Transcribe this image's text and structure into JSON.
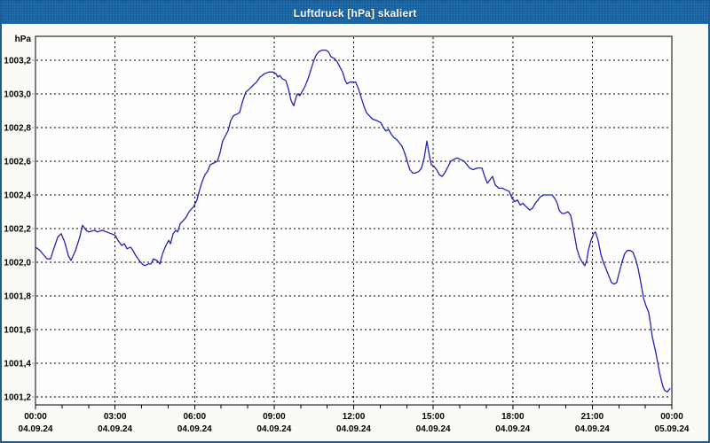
{
  "window": {
    "title": "Luftdruck [hPa] skaliert"
  },
  "colors": {
    "window_border": "#1d5c94",
    "titlebar_bg": "#1f6dad",
    "page_bg": "#fafaf6",
    "plot_bg": "#fefefe",
    "plot_border": "#000000",
    "grid": "#000000",
    "axis_text": "#000000",
    "y_tick": "#7aa2c8",
    "x_tick": "#000000",
    "line": "#2323b8"
  },
  "chart_data": {
    "type": "line",
    "title": "Luftdruck [hPa] skaliert",
    "xlabel": "",
    "ylabel": "hPa",
    "grid": "dashed",
    "legend": "none",
    "y_axis": {
      "unit_label": "hPa",
      "range": [
        1001.153,
        1003.342
      ],
      "ticks": [
        {
          "v": 1003.2,
          "label": "1003,2"
        },
        {
          "v": 1003.0,
          "label": "1003,0"
        },
        {
          "v": 1002.8,
          "label": "1002,8"
        },
        {
          "v": 1002.6,
          "label": "1002,6"
        },
        {
          "v": 1002.4,
          "label": "1002,4"
        },
        {
          "v": 1002.2,
          "label": "1002,2"
        },
        {
          "v": 1002.0,
          "label": "1002,0"
        },
        {
          "v": 1001.8,
          "label": "1001,8"
        },
        {
          "v": 1001.6,
          "label": "1001,6"
        },
        {
          "v": 1001.4,
          "label": "1001,4"
        },
        {
          "v": 1001.2,
          "label": "1001,2"
        }
      ]
    },
    "x_axis": {
      "range_hours": [
        0,
        24
      ],
      "minor_tick_interval_hours": 1,
      "ticks": [
        {
          "hour": 0,
          "time": "00:00",
          "date": "04.09.24"
        },
        {
          "hour": 3,
          "time": "03:00",
          "date": "04.09.24"
        },
        {
          "hour": 6,
          "time": "06:00",
          "date": "04.09.24"
        },
        {
          "hour": 9,
          "time": "09:00",
          "date": "04.09.24"
        },
        {
          "hour": 12,
          "time": "12:00",
          "date": "04.09.24"
        },
        {
          "hour": 15,
          "time": "15:00",
          "date": "04.09.24"
        },
        {
          "hour": 18,
          "time": "18:00",
          "date": "04.09.24"
        },
        {
          "hour": 21,
          "time": "21:00",
          "date": "04.09.24"
        },
        {
          "hour": 24,
          "time": "00:00",
          "date": "05.09.24"
        }
      ]
    },
    "series": [
      {
        "name": "Luftdruck",
        "color": "#2323b8",
        "points": [
          [
            0,
            1002.09
          ],
          [
            0.17,
            1002.07
          ],
          [
            0.27,
            1002.05
          ],
          [
            0.44,
            1002.02
          ],
          [
            0.57,
            1002.02
          ],
          [
            0.67,
            1002.07
          ],
          [
            0.84,
            1002.15
          ],
          [
            0.97,
            1002.17
          ],
          [
            1.1,
            1002.12
          ],
          [
            1.24,
            1002.04
          ],
          [
            1.34,
            1002.01
          ],
          [
            1.51,
            1002.07
          ],
          [
            1.67,
            1002.15
          ],
          [
            1.77,
            1002.22
          ],
          [
            1.91,
            1002.19
          ],
          [
            2.01,
            1002.18
          ],
          [
            2.24,
            1002.19
          ],
          [
            2.34,
            1002.18
          ],
          [
            2.51,
            1002.19
          ],
          [
            2.68,
            1002.18
          ],
          [
            2.85,
            1002.17
          ],
          [
            3.01,
            1002.16
          ],
          [
            3.11,
            1002.13
          ],
          [
            3.25,
            1002.1
          ],
          [
            3.35,
            1002.11
          ],
          [
            3.45,
            1002.08
          ],
          [
            3.58,
            1002.09
          ],
          [
            3.68,
            1002.07
          ],
          [
            3.78,
            1002.04
          ],
          [
            3.92,
            1002.01
          ],
          [
            4.02,
            1001.99
          ],
          [
            4.12,
            1001.98
          ],
          [
            4.25,
            1001.99
          ],
          [
            4.35,
            1001.99
          ],
          [
            4.45,
            1002.02
          ],
          [
            4.59,
            1002.01
          ],
          [
            4.69,
            1001.99
          ],
          [
            4.79,
            1002.05
          ],
          [
            4.92,
            1002.1
          ],
          [
            5.02,
            1002.13
          ],
          [
            5.09,
            1002.11
          ],
          [
            5.19,
            1002.17
          ],
          [
            5.29,
            1002.19
          ],
          [
            5.36,
            1002.18
          ],
          [
            5.46,
            1002.23
          ],
          [
            5.59,
            1002.25
          ],
          [
            5.69,
            1002.27
          ],
          [
            5.79,
            1002.3
          ],
          [
            5.96,
            1002.33
          ],
          [
            6.09,
            1002.37
          ],
          [
            6.19,
            1002.43
          ],
          [
            6.29,
            1002.48
          ],
          [
            6.39,
            1002.52
          ],
          [
            6.49,
            1002.54
          ],
          [
            6.59,
            1002.58
          ],
          [
            6.73,
            1002.59
          ],
          [
            6.86,
            1002.6
          ],
          [
            6.96,
            1002.65
          ],
          [
            7.06,
            1002.72
          ],
          [
            7.16,
            1002.75
          ],
          [
            7.26,
            1002.78
          ],
          [
            7.36,
            1002.84
          ],
          [
            7.46,
            1002.87
          ],
          [
            7.6,
            1002.88
          ],
          [
            7.7,
            1002.89
          ],
          [
            7.8,
            1002.95
          ],
          [
            7.93,
            1003.01
          ],
          [
            8.07,
            1003.03
          ],
          [
            8.2,
            1003.05
          ],
          [
            8.33,
            1003.07
          ],
          [
            8.47,
            1003.1
          ],
          [
            8.64,
            1003.12
          ],
          [
            8.8,
            1003.13
          ],
          [
            8.97,
            1003.13
          ],
          [
            9.07,
            1003.12
          ],
          [
            9.14,
            1003.1
          ],
          [
            9.21,
            1003.11
          ],
          [
            9.31,
            1003.09
          ],
          [
            9.44,
            1003.08
          ],
          [
            9.54,
            1003.03
          ],
          [
            9.64,
            1002.96
          ],
          [
            9.74,
            1002.93
          ],
          [
            9.81,
            1002.97
          ],
          [
            9.87,
            1003.0
          ],
          [
            9.97,
            1002.99
          ],
          [
            10.08,
            1003.02
          ],
          [
            10.18,
            1003.05
          ],
          [
            10.28,
            1003.09
          ],
          [
            10.38,
            1003.14
          ],
          [
            10.48,
            1003.19
          ],
          [
            10.58,
            1003.23
          ],
          [
            10.68,
            1003.25
          ],
          [
            10.81,
            1003.26
          ],
          [
            10.95,
            1003.26
          ],
          [
            11.05,
            1003.25
          ],
          [
            11.15,
            1003.22
          ],
          [
            11.28,
            1003.21
          ],
          [
            11.38,
            1003.19
          ],
          [
            11.48,
            1003.16
          ],
          [
            11.58,
            1003.13
          ],
          [
            11.68,
            1003.08
          ],
          [
            11.75,
            1003.06
          ],
          [
            11.85,
            1003.07
          ],
          [
            11.98,
            1003.07
          ],
          [
            12.08,
            1003.07
          ],
          [
            12.18,
            1003.03
          ],
          [
            12.28,
            1002.98
          ],
          [
            12.38,
            1002.93
          ],
          [
            12.48,
            1002.89
          ],
          [
            12.59,
            1002.87
          ],
          [
            12.72,
            1002.85
          ],
          [
            12.89,
            1002.84
          ],
          [
            13.02,
            1002.83
          ],
          [
            13.12,
            1002.8
          ],
          [
            13.22,
            1002.78
          ],
          [
            13.32,
            1002.79
          ],
          [
            13.42,
            1002.76
          ],
          [
            13.52,
            1002.74
          ],
          [
            13.62,
            1002.73
          ],
          [
            13.72,
            1002.71
          ],
          [
            13.82,
            1002.69
          ],
          [
            13.92,
            1002.65
          ],
          [
            14.02,
            1002.6
          ],
          [
            14.12,
            1002.55
          ],
          [
            14.23,
            1002.53
          ],
          [
            14.33,
            1002.53
          ],
          [
            14.46,
            1002.54
          ],
          [
            14.56,
            1002.56
          ],
          [
            14.66,
            1002.62
          ],
          [
            14.76,
            1002.72
          ],
          [
            14.86,
            1002.63
          ],
          [
            14.93,
            1002.58
          ],
          [
            15.03,
            1002.57
          ],
          [
            15.13,
            1002.55
          ],
          [
            15.23,
            1002.52
          ],
          [
            15.33,
            1002.51
          ],
          [
            15.43,
            1002.53
          ],
          [
            15.53,
            1002.56
          ],
          [
            15.67,
            1002.6
          ],
          [
            15.77,
            1002.61
          ],
          [
            15.9,
            1002.62
          ],
          [
            16.03,
            1002.61
          ],
          [
            16.17,
            1002.6
          ],
          [
            16.27,
            1002.58
          ],
          [
            16.37,
            1002.56
          ],
          [
            16.5,
            1002.55
          ],
          [
            16.67,
            1002.56
          ],
          [
            16.84,
            1002.56
          ],
          [
            16.94,
            1002.51
          ],
          [
            17.04,
            1002.47
          ],
          [
            17.14,
            1002.49
          ],
          [
            17.24,
            1002.51
          ],
          [
            17.34,
            1002.46
          ],
          [
            17.47,
            1002.44
          ],
          [
            17.61,
            1002.44
          ],
          [
            17.74,
            1002.43
          ],
          [
            17.87,
            1002.42
          ],
          [
            17.97,
            1002.38
          ],
          [
            18.08,
            1002.36
          ],
          [
            18.18,
            1002.37
          ],
          [
            18.28,
            1002.34
          ],
          [
            18.38,
            1002.35
          ],
          [
            18.51,
            1002.33
          ],
          [
            18.64,
            1002.31
          ],
          [
            18.74,
            1002.32
          ],
          [
            18.85,
            1002.35
          ],
          [
            18.95,
            1002.37
          ],
          [
            19.05,
            1002.39
          ],
          [
            19.18,
            1002.4
          ],
          [
            19.35,
            1002.4
          ],
          [
            19.48,
            1002.4
          ],
          [
            19.58,
            1002.38
          ],
          [
            19.68,
            1002.35
          ],
          [
            19.75,
            1002.31
          ],
          [
            19.85,
            1002.29
          ],
          [
            19.95,
            1002.29
          ],
          [
            20.08,
            1002.3
          ],
          [
            20.18,
            1002.28
          ],
          [
            20.25,
            1002.23
          ],
          [
            20.35,
            1002.14
          ],
          [
            20.42,
            1002.08
          ],
          [
            20.52,
            1002.03
          ],
          [
            20.62,
            1002.0
          ],
          [
            20.72,
            1001.98
          ],
          [
            20.79,
            1002.01
          ],
          [
            20.85,
            1002.07
          ],
          [
            20.95,
            1002.13
          ],
          [
            21.05,
            1002.17
          ],
          [
            21.12,
            1002.18
          ],
          [
            21.22,
            1002.13
          ],
          [
            21.32,
            1002.05
          ],
          [
            21.42,
            1002.0
          ],
          [
            21.52,
            1001.96
          ],
          [
            21.62,
            1001.92
          ],
          [
            21.72,
            1001.88
          ],
          [
            21.82,
            1001.87
          ],
          [
            21.92,
            1001.88
          ],
          [
            22.02,
            1001.94
          ],
          [
            22.12,
            1002.0
          ],
          [
            22.22,
            1002.05
          ],
          [
            22.32,
            1002.07
          ],
          [
            22.43,
            1002.07
          ],
          [
            22.53,
            1002.06
          ],
          [
            22.63,
            1002.02
          ],
          [
            22.73,
            1001.96
          ],
          [
            22.83,
            1001.88
          ],
          [
            22.93,
            1001.79
          ],
          [
            23.03,
            1001.74
          ],
          [
            23.13,
            1001.7
          ],
          [
            23.2,
            1001.63
          ],
          [
            23.26,
            1001.56
          ],
          [
            23.33,
            1001.51
          ],
          [
            23.4,
            1001.46
          ],
          [
            23.46,
            1001.41
          ],
          [
            23.53,
            1001.35
          ],
          [
            23.6,
            1001.3
          ],
          [
            23.67,
            1001.26
          ],
          [
            23.73,
            1001.24
          ],
          [
            23.83,
            1001.23
          ],
          [
            23.93,
            1001.25
          ]
        ]
      }
    ]
  }
}
